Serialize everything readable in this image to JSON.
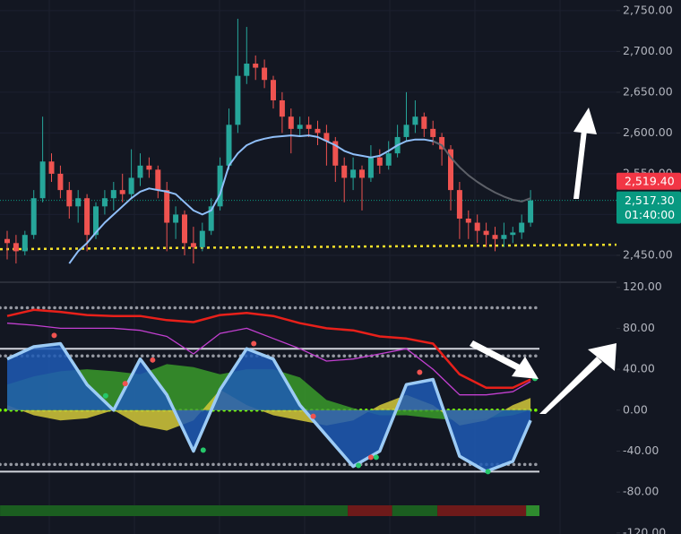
{
  "chart_data": [
    {
      "type": "candlestick",
      "ylim": [
        2417,
        2763
      ],
      "yticks": [
        {
          "value": 2450,
          "label": "2,450.00"
        },
        {
          "value": 2500,
          "label": "2,500.00"
        },
        {
          "value": 2550,
          "label": "2,550.00"
        },
        {
          "value": 2600,
          "label": "2,600.00"
        },
        {
          "value": 2650,
          "label": "2,650.00"
        },
        {
          "value": 2700,
          "label": "2,700.00"
        },
        {
          "value": 2750,
          "label": "2,750.00"
        }
      ],
      "grid": true,
      "up_color": "#26a69a",
      "down_color": "#ef5350",
      "ohlc": [
        [
          2470,
          2480,
          2445,
          2465
        ],
        [
          2465,
          2475,
          2440,
          2455
        ],
        [
          2455,
          2480,
          2450,
          2475
        ],
        [
          2475,
          2530,
          2470,
          2520
        ],
        [
          2520,
          2620,
          2515,
          2565
        ],
        [
          2565,
          2575,
          2540,
          2550
        ],
        [
          2550,
          2560,
          2520,
          2530
        ],
        [
          2530,
          2540,
          2495,
          2510
        ],
        [
          2510,
          2530,
          2490,
          2520
        ],
        [
          2520,
          2525,
          2455,
          2475
        ],
        [
          2475,
          2515,
          2470,
          2510
        ],
        [
          2510,
          2530,
          2500,
          2520
        ],
        [
          2520,
          2540,
          2505,
          2530
        ],
        [
          2530,
          2550,
          2515,
          2525
        ],
        [
          2525,
          2580,
          2520,
          2545
        ],
        [
          2545,
          2575,
          2535,
          2560
        ],
        [
          2560,
          2570,
          2545,
          2555
        ],
        [
          2555,
          2560,
          2520,
          2530
        ],
        [
          2530,
          2540,
          2455,
          2490
        ],
        [
          2490,
          2510,
          2470,
          2500
        ],
        [
          2500,
          2505,
          2450,
          2465
        ],
        [
          2465,
          2485,
          2440,
          2460
        ],
        [
          2460,
          2490,
          2455,
          2480
        ],
        [
          2480,
          2520,
          2475,
          2510
        ],
        [
          2510,
          2570,
          2505,
          2560
        ],
        [
          2560,
          2630,
          2555,
          2610
        ],
        [
          2610,
          2740,
          2600,
          2670
        ],
        [
          2670,
          2730,
          2660,
          2685
        ],
        [
          2685,
          2695,
          2665,
          2680
        ],
        [
          2680,
          2690,
          2655,
          2665
        ],
        [
          2665,
          2670,
          2630,
          2640
        ],
        [
          2640,
          2650,
          2600,
          2620
        ],
        [
          2620,
          2630,
          2575,
          2605
        ],
        [
          2605,
          2620,
          2595,
          2610
        ],
        [
          2610,
          2620,
          2595,
          2605
        ],
        [
          2605,
          2615,
          2585,
          2600
        ],
        [
          2600,
          2610,
          2560,
          2590
        ],
        [
          2590,
          2595,
          2540,
          2560
        ],
        [
          2560,
          2570,
          2515,
          2545
        ],
        [
          2545,
          2570,
          2530,
          2555
        ],
        [
          2555,
          2560,
          2505,
          2545
        ],
        [
          2545,
          2585,
          2540,
          2570
        ],
        [
          2570,
          2580,
          2550,
          2560
        ],
        [
          2560,
          2590,
          2555,
          2575
        ],
        [
          2575,
          2610,
          2570,
          2595
        ],
        [
          2595,
          2650,
          2590,
          2610
        ],
        [
          2610,
          2640,
          2600,
          2620
        ],
        [
          2620,
          2625,
          2595,
          2605
        ],
        [
          2605,
          2615,
          2585,
          2595
        ],
        [
          2595,
          2600,
          2560,
          2580
        ],
        [
          2580,
          2585,
          2505,
          2530
        ],
        [
          2530,
          2540,
          2470,
          2495
        ],
        [
          2495,
          2505,
          2470,
          2490
        ],
        [
          2490,
          2500,
          2465,
          2480
        ],
        [
          2480,
          2490,
          2460,
          2475
        ],
        [
          2475,
          2485,
          2455,
          2470
        ],
        [
          2470,
          2490,
          2460,
          2475
        ],
        [
          2475,
          2485,
          2465,
          2478
        ],
        [
          2478,
          2500,
          2470,
          2490
        ],
        [
          2490,
          2530,
          2485,
          2517.3
        ]
      ],
      "lines": [
        {
          "color": "#90bff9",
          "values": [
            null,
            null,
            null,
            null,
            null,
            null,
            null,
            2440,
            2455,
            2465,
            2478,
            2490,
            2500,
            2510,
            2520,
            2528,
            2532,
            2530,
            2528,
            2525,
            2515,
            2505,
            2500,
            2505,
            2525,
            2560,
            2575,
            2585,
            2590,
            2593,
            2595,
            2596,
            2597,
            2596,
            2597,
            2595,
            2590,
            2585,
            2578,
            2574,
            2572,
            2570,
            2572,
            2578,
            2585,
            2590,
            2592,
            2592,
            2590,
            2585,
            null,
            null,
            null,
            null,
            null,
            null,
            null,
            null,
            null,
            null
          ]
        },
        {
          "color": "#5d6068",
          "values": [
            null,
            null,
            null,
            null,
            null,
            null,
            null,
            null,
            null,
            null,
            null,
            null,
            null,
            null,
            null,
            null,
            null,
            null,
            null,
            null,
            null,
            null,
            null,
            null,
            null,
            null,
            null,
            null,
            null,
            null,
            null,
            null,
            null,
            null,
            null,
            null,
            null,
            null,
            null,
            null,
            null,
            null,
            null,
            null,
            null,
            null,
            null,
            null,
            2590,
            2585,
            2570,
            2558,
            2548,
            2540,
            2533,
            2527,
            2522,
            2518,
            2516,
            2520
          ]
        }
      ],
      "support": {
        "values": [
          2457.5,
          2463
        ],
        "color": "#f5e02a"
      },
      "last_price": {
        "value": 2517.3,
        "label": "2,517.30",
        "color": "#089981"
      },
      "countdown": "01:40:00",
      "marker": {
        "value": 2519.4,
        "label": "2,519.40",
        "color": "#f23645"
      }
    },
    {
      "type": "area",
      "ylim": [
        -121,
        125
      ],
      "yticks": [
        {
          "value": 120,
          "label": "120.00"
        },
        {
          "value": 80,
          "label": "80.00"
        },
        {
          "value": 40,
          "label": "40.00"
        },
        {
          "value": 0,
          "label": "0.00"
        },
        {
          "value": -40,
          "label": "-40.00"
        },
        {
          "value": -80,
          "label": "-80.00"
        },
        {
          "value": -120,
          "label": "-120.00"
        }
      ],
      "x": [
        0,
        3,
        6,
        9,
        12,
        15,
        18,
        21,
        24,
        27,
        30,
        33,
        36,
        39,
        42,
        45,
        48,
        51,
        54,
        57,
        59
      ],
      "levels": [
        {
          "value": 100,
          "style": "dotted",
          "color": "#9598a1"
        },
        {
          "value": 60,
          "style": "solid",
          "color": "#d1d4dc"
        },
        {
          "value": 53,
          "style": "dotted",
          "color": "#9598a1"
        },
        {
          "value": -53,
          "style": "dotted",
          "color": "#9598a1"
        },
        {
          "value": -60,
          "style": "solid",
          "color": "#d1d4dc"
        },
        {
          "value": 0,
          "style": "dotted",
          "color": "#76ff03"
        }
      ],
      "areas": [
        {
          "color": "#3a9a2a",
          "values": [
            25,
            33,
            38,
            40,
            38,
            35,
            45,
            42,
            35,
            40,
            40,
            32,
            10,
            2,
            -5,
            -5,
            -8,
            -10,
            -8,
            -5,
            0
          ]
        },
        {
          "color": "#d4c93a",
          "values": [
            5,
            -5,
            -10,
            -8,
            0,
            -15,
            -20,
            -10,
            20,
            5,
            -5,
            -10,
            -15,
            -10,
            5,
            15,
            5,
            -15,
            -10,
            5,
            12
          ]
        },
        {
          "color": "#1f5bb5",
          "edge": "#9ccbf5",
          "values": [
            50,
            62,
            65,
            25,
            0,
            50,
            15,
            -40,
            20,
            60,
            50,
            5,
            -25,
            -55,
            -40,
            25,
            30,
            -45,
            -60,
            -50,
            -10
          ]
        }
      ],
      "lines": [
        {
          "color": "#e8201a",
          "values": [
            92,
            98,
            96,
            93,
            92,
            92,
            88,
            86,
            93,
            95,
            92,
            85,
            80,
            78,
            72,
            70,
            65,
            35,
            22,
            22,
            30
          ]
        },
        {
          "color": "#c23fd0",
          "values": [
            85,
            83,
            80,
            80,
            80,
            78,
            72,
            55,
            75,
            80,
            70,
            60,
            48,
            50,
            55,
            60,
            40,
            15,
            15,
            18,
            28
          ]
        }
      ],
      "signals": {
        "x": [
          5.3,
          13.3,
          16.4,
          27.8,
          34.5,
          41,
          46.5,
          11.1,
          22.1,
          39.6,
          41.6,
          54.2,
          59.5
        ],
        "values": [
          73,
          26,
          49,
          65,
          -6,
          -46,
          37,
          14,
          -39,
          -54,
          -46,
          -60,
          31
        ],
        "colors": [
          "#ef5350",
          "#ef5350",
          "#ef5350",
          "#ef5350",
          "#ef5350",
          "#ef5350",
          "#ef5350",
          "#26c76a",
          "#26c76a",
          "#26c76a",
          "#26c76a",
          "#26c76a",
          "#26c76a"
        ]
      },
      "status": {
        "x": [
          -0.8,
          38.4,
          43.4,
          48.5,
          58.5,
          60
        ],
        "colors": [
          "#1b5e20",
          "#6e1a1a",
          "#1b5e20",
          "#6e1a1a",
          "#2e8b2e"
        ]
      }
    }
  ]
}
